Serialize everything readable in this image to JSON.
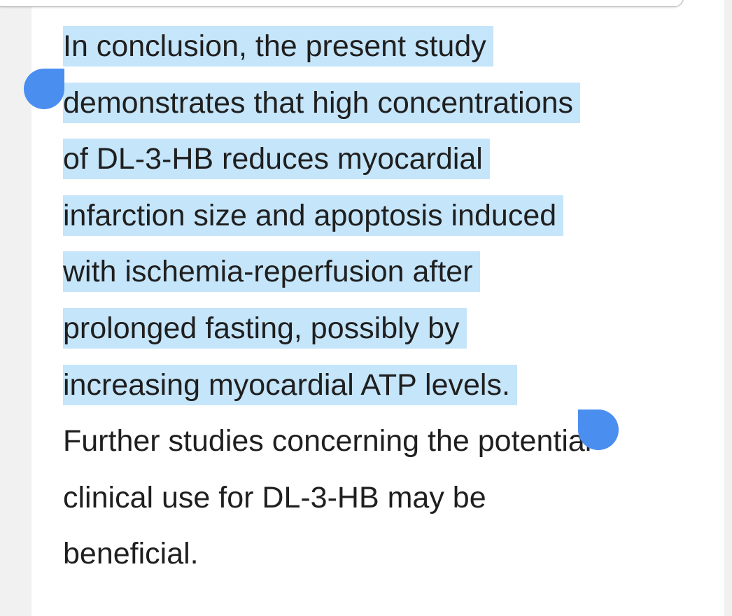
{
  "paragraph": {
    "lines": [
      {
        "text": "In conclusion, the present study",
        "selected": true
      },
      {
        "text": "demonstrates that high concentrations",
        "selected": true
      },
      {
        "text": "of DL-3-HB reduces myocardial",
        "selected": true
      },
      {
        "text": "infarction size and apoptosis induced",
        "selected": true
      },
      {
        "text": "with ischemia-reperfusion after",
        "selected": true
      },
      {
        "text": "prolonged fasting, possibly by",
        "selected": true
      },
      {
        "text": "increasing myocardial ATP levels.",
        "selected": true
      },
      {
        "text": "Further studies concerning the potential",
        "selected": false
      },
      {
        "text": "clinical use for DL-3-HB may be",
        "selected": false
      },
      {
        "text": "beneficial.",
        "selected": false
      }
    ]
  }
}
